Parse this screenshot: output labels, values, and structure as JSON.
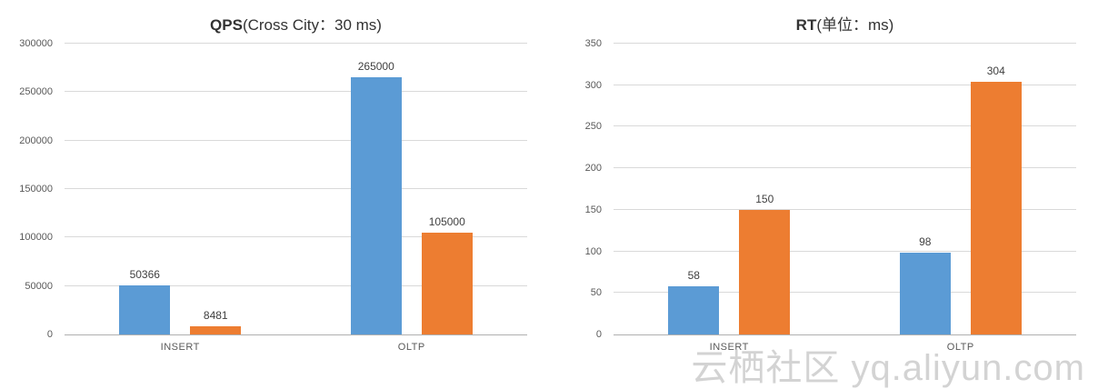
{
  "chart_data": [
    {
      "type": "bar",
      "title": "QPS(Cross City：30 ms)",
      "title_bold": "QPS",
      "title_rest": "(Cross City：30 ms)",
      "categories": [
        "INSERT",
        "OLTP"
      ],
      "series": [
        {
          "color_name": "blue",
          "color": "#5B9BD5",
          "values": [
            50366,
            265000
          ]
        },
        {
          "color_name": "orange",
          "color": "#ED7D31",
          "values": [
            8481,
            105000
          ]
        }
      ],
      "ylim": [
        0,
        300000
      ],
      "yticks": [
        0,
        50000,
        100000,
        150000,
        200000,
        250000,
        300000
      ],
      "grid": true,
      "legend": "none"
    },
    {
      "type": "bar",
      "title": "RT(单位：ms)",
      "title_bold": "RT",
      "title_rest": "(单位：ms)",
      "categories": [
        "INSERT",
        "OLTP"
      ],
      "series": [
        {
          "color_name": "blue",
          "color": "#5B9BD5",
          "values": [
            58,
            98
          ]
        },
        {
          "color_name": "orange",
          "color": "#ED7D31",
          "values": [
            150,
            304
          ]
        }
      ],
      "ylim": [
        0,
        350
      ],
      "yticks": [
        0,
        50,
        100,
        150,
        200,
        250,
        300,
        350
      ],
      "grid": true,
      "legend": "none"
    }
  ],
  "colors": {
    "blue": "#5B9BD5",
    "orange": "#ED7D31",
    "gridline": "#d9d9d9"
  },
  "watermark": "云栖社区 yq.aliyun.com"
}
